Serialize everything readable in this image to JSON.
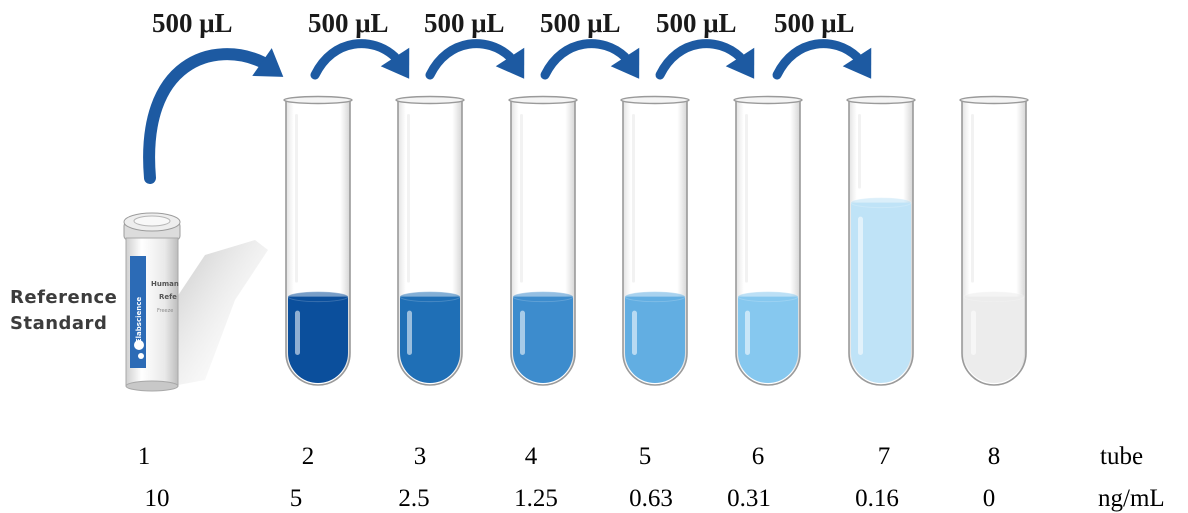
{
  "transfers": [
    "500 μL",
    "500 μL",
    "500 μL",
    "500 μL",
    "500 μL",
    "500 μL"
  ],
  "reference": {
    "line1": "Reference",
    "line2": "Standard"
  },
  "vial_label": {
    "brand": "Elabscience",
    "line1": "Human",
    "line2": "Refe",
    "line3": "Freeze"
  },
  "tube_numbers": [
    "1",
    "2",
    "3",
    "4",
    "5",
    "6",
    "7",
    "8"
  ],
  "tube_label": "tube",
  "concentrations": [
    "10",
    "5",
    "2.5",
    "1.25",
    "0.63",
    "0.31",
    "0.16",
    "0"
  ],
  "concentration_unit": "ng/mL",
  "liquid_colors": [
    "#0b4f9c",
    "#1f6fb6",
    "#3d8ccd",
    "#62aee2",
    "#86c8ef",
    "#bfe3f7",
    "#ececec"
  ],
  "liquid_levels": [
    0.31,
    0.31,
    0.31,
    0.31,
    0.31,
    0.64,
    0.31
  ],
  "arrow_color": "#1d5aa2"
}
